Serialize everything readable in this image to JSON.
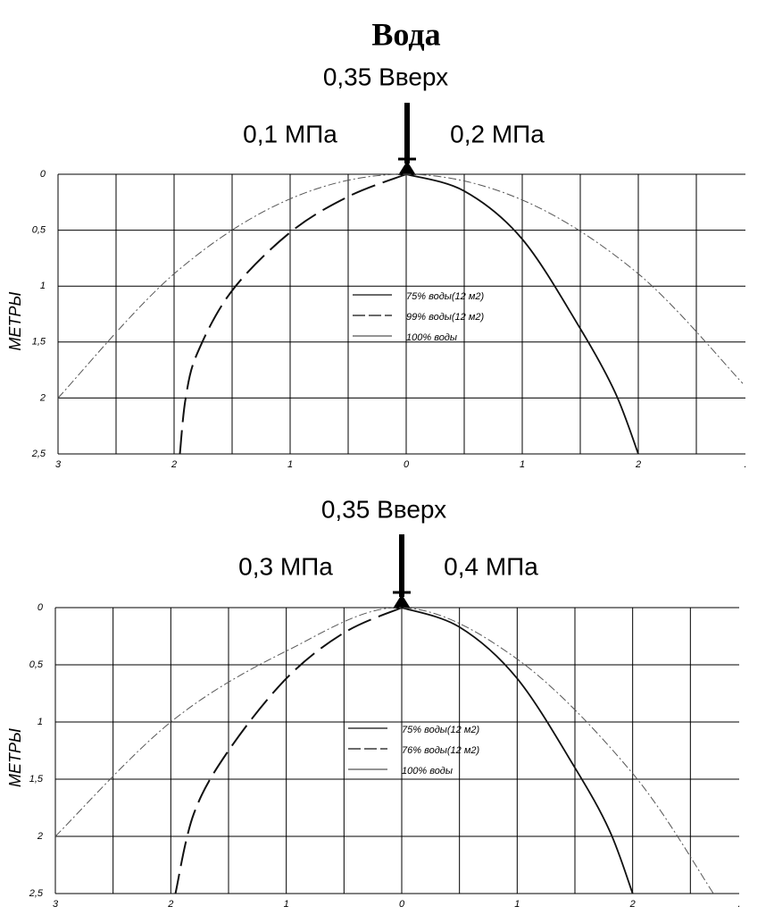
{
  "chart_data": [
    {
      "type": "line",
      "title": "Вода",
      "annotations": [
        "0,35 Вверх",
        "0,1 МПа",
        "0,2 МПа"
      ],
      "ylabel": "МЕТРЫ",
      "xlim": [
        -3,
        3
      ],
      "ylim": [
        2.5,
        0
      ],
      "xticks": [
        {
          "value": -3,
          "label": "3"
        },
        {
          "value": -2,
          "label": "2"
        },
        {
          "value": -1,
          "label": "1"
        },
        0,
        1,
        2,
        {
          "value": 3,
          "label": "."
        }
      ],
      "yticks": [
        0,
        {
          "value": 0.5,
          "label": "0,5"
        },
        1,
        {
          "value": 1.5,
          "label": "1,5"
        },
        2,
        {
          "value": 2.5,
          "label": "2,5"
        }
      ],
      "xgrid": [
        -3,
        -2.5,
        -2,
        -1.5,
        -1,
        -0.5,
        0,
        0.5,
        1,
        1.5,
        2,
        2.5
      ],
      "grid": true,
      "legend": "center",
      "series": [
        {
          "name": "75% воды(12 м2)",
          "color": "#111111",
          "dash": "solid",
          "x": [
            0,
            0.5,
            1,
            1.5,
            1.8,
            2
          ],
          "values": [
            0,
            0.15,
            0.58,
            1.38,
            1.95,
            2.5
          ]
        },
        {
          "name": "99% воды(12 м2)",
          "color": "#111111",
          "dash": "dashed",
          "x": [
            0,
            -0.5,
            -1,
            -1.5,
            -1.8,
            -1.9,
            -1.95
          ],
          "values": [
            0,
            0.2,
            0.52,
            1.04,
            1.6,
            2.0,
            2.5
          ]
        },
        {
          "name": "100% воды",
          "color": "#555555",
          "dash": "dashdot",
          "x": [
            -3,
            -2,
            -1,
            0,
            1,
            2,
            2.9
          ],
          "values": [
            2,
            0.89,
            0.22,
            0,
            0.23,
            0.89,
            1.87
          ]
        }
      ]
    },
    {
      "type": "line",
      "annotations": [
        "0,35 Вверх",
        "0,3 МПа",
        "0,4 МПа"
      ],
      "ylabel": "МЕТРЫ",
      "xlim": [
        -3,
        3
      ],
      "ylim": [
        2.5,
        0
      ],
      "xticks": [
        {
          "value": -3,
          "label": "3"
        },
        {
          "value": -2,
          "label": "2"
        },
        {
          "value": -1,
          "label": "1"
        },
        0,
        1,
        2,
        {
          "value": 3,
          "label": "."
        }
      ],
      "yticks": [
        0,
        {
          "value": 0.5,
          "label": "0,5"
        },
        1,
        {
          "value": 1.5,
          "label": "1,5"
        },
        2,
        {
          "value": 2.5,
          "label": "2,5"
        }
      ],
      "xgrid": [
        -3,
        -2.5,
        -2,
        -1.5,
        -1,
        -0.5,
        0,
        0.5,
        1,
        1.5,
        2,
        2.5
      ],
      "grid": true,
      "legend": "center",
      "series": [
        {
          "name": "75% воды(12 м2)",
          "color": "#111111",
          "dash": "solid",
          "x": [
            0,
            0.5,
            1,
            1.5,
            1.8,
            2
          ],
          "values": [
            0,
            0.17,
            0.62,
            1.4,
            1.95,
            2.5
          ]
        },
        {
          "name": "76% воды(12 м2)",
          "color": "#111111",
          "dash": "dashed",
          "x": [
            0,
            -0.5,
            -1,
            -1.5,
            -1.8,
            -1.96
          ],
          "values": [
            0,
            0.22,
            0.62,
            1.25,
            1.8,
            2.5
          ]
        },
        {
          "name": "100% воды",
          "color": "#555555",
          "dash": "dashdot",
          "x": [
            -3,
            -2,
            -1,
            0,
            1,
            2,
            2.7
          ],
          "values": [
            2,
            1.0,
            0.38,
            0,
            0.45,
            1.45,
            2.5
          ]
        }
      ]
    }
  ]
}
